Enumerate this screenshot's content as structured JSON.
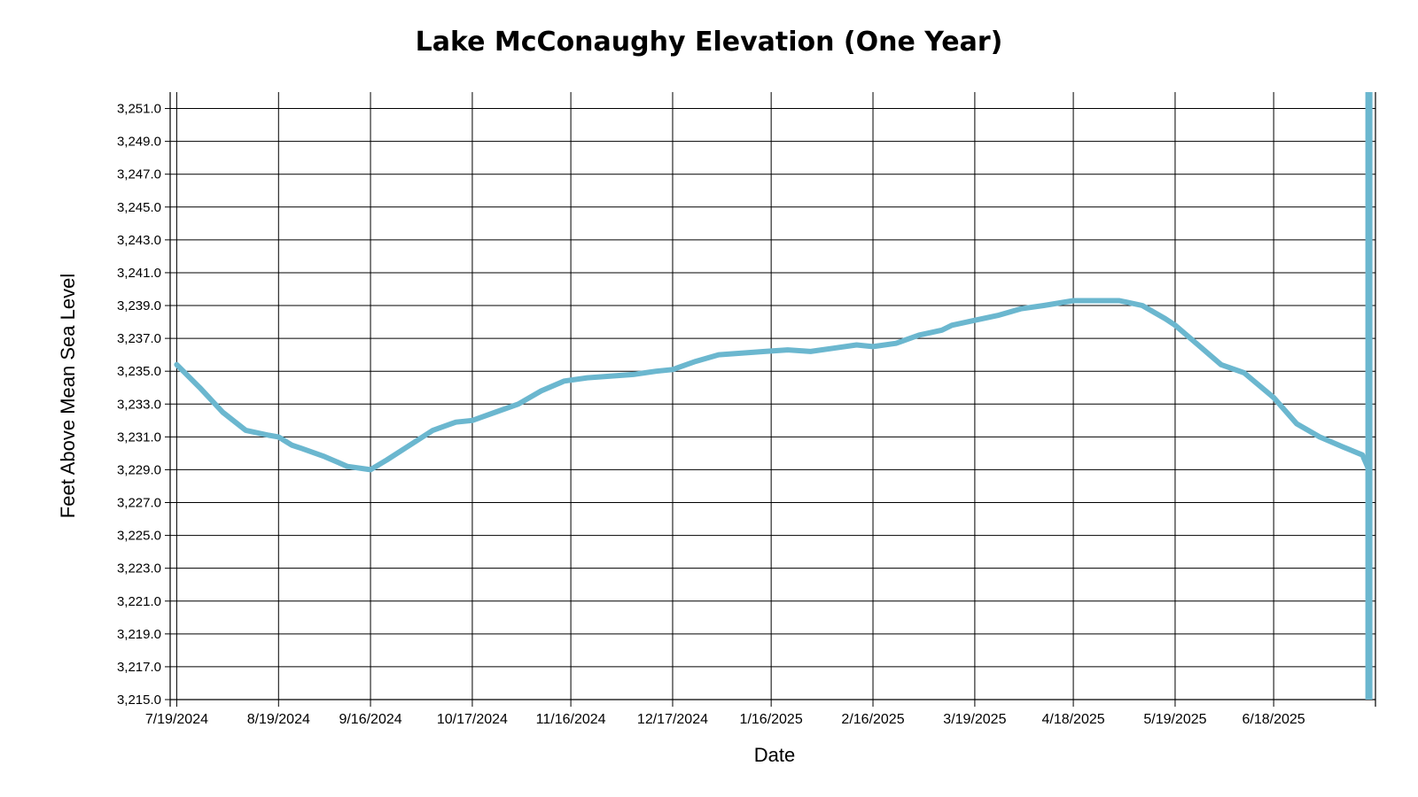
{
  "chart_data": {
    "type": "line",
    "title": "Lake McConaughy Elevation (One Year)",
    "xlabel": "Date",
    "ylabel": "Feet Above Mean Sea Level",
    "ylim": [
      3215.0,
      3252.0
    ],
    "yticks": [
      "3,215.0",
      "3,217.0",
      "3,219.0",
      "3,221.0",
      "3,223.0",
      "3,225.0",
      "3,227.0",
      "3,229.0",
      "3,231.0",
      "3,233.0",
      "3,235.0",
      "3,237.0",
      "3,239.0",
      "3,241.0",
      "3,243.0",
      "3,245.0",
      "3,247.0",
      "3,249.0",
      "3,251.0"
    ],
    "xticks": [
      "7/19/2024",
      "8/19/2024",
      "9/16/2024",
      "10/17/2024",
      "11/16/2024",
      "12/17/2024",
      "1/16/2025",
      "2/16/2025",
      "3/19/2025",
      "4/18/2025",
      "5/19/2025",
      "6/18/2025"
    ],
    "xlim": [
      "7/17/2024",
      "7/19/2025"
    ],
    "grid": true,
    "line_color": "#6bb7cf",
    "series": [
      {
        "x": [
          "7/19/2024",
          "7/26/2024",
          "8/2/2024",
          "8/9/2024",
          "8/16/2024",
          "8/19/2024",
          "8/23/2024",
          "8/26/2024",
          "9/2/2024",
          "9/9/2024",
          "9/16/2024",
          "9/21/2024",
          "9/28/2024",
          "10/5/2024",
          "10/12/2024",
          "10/17/2024",
          "10/24/2024",
          "10/31/2024",
          "11/7/2024",
          "11/14/2024",
          "11/21/2024",
          "11/28/2024",
          "12/5/2024",
          "12/12/2024",
          "12/17/2024",
          "12/24/2024",
          "12/31/2024",
          "1/7/2025",
          "1/14/2025",
          "1/21/2025",
          "1/28/2025",
          "2/4/2025",
          "2/11/2025",
          "2/16/2025",
          "2/23/2025",
          "3/2/2025",
          "3/9/2025",
          "3/12/2025",
          "3/19/2025",
          "3/26/2025",
          "4/2/2025",
          "4/9/2025",
          "4/18/2025",
          "4/25/2025",
          "5/2/2025",
          "5/9/2025",
          "5/16/2025",
          "5/19/2025",
          "5/26/2025",
          "6/2/2025",
          "6/9/2025",
          "6/18/2025",
          "6/25/2025",
          "7/2/2025",
          "7/9/2025",
          "7/15/2025",
          "7/17/2025"
        ],
        "y": [
          3235.4,
          3234.0,
          3232.5,
          3231.4,
          3231.1,
          3231.0,
          3230.5,
          3230.3,
          3229.8,
          3229.2,
          3229.0,
          3229.6,
          3230.5,
          3231.4,
          3231.9,
          3232.0,
          3232.5,
          3233.0,
          3233.8,
          3234.4,
          3234.6,
          3234.7,
          3234.8,
          3235.0,
          3235.1,
          3235.6,
          3236.0,
          3236.1,
          3236.2,
          3236.3,
          3236.2,
          3236.4,
          3236.6,
          3236.5,
          3236.7,
          3237.2,
          3237.5,
          3237.8,
          3238.1,
          3238.4,
          3238.8,
          3239.0,
          3239.3,
          3239.3,
          3239.3,
          3239.0,
          3238.2,
          3237.8,
          3236.6,
          3235.4,
          3234.9,
          3233.4,
          3231.8,
          3231.0,
          3230.4,
          3229.9,
          3229.0
        ]
      }
    ]
  }
}
